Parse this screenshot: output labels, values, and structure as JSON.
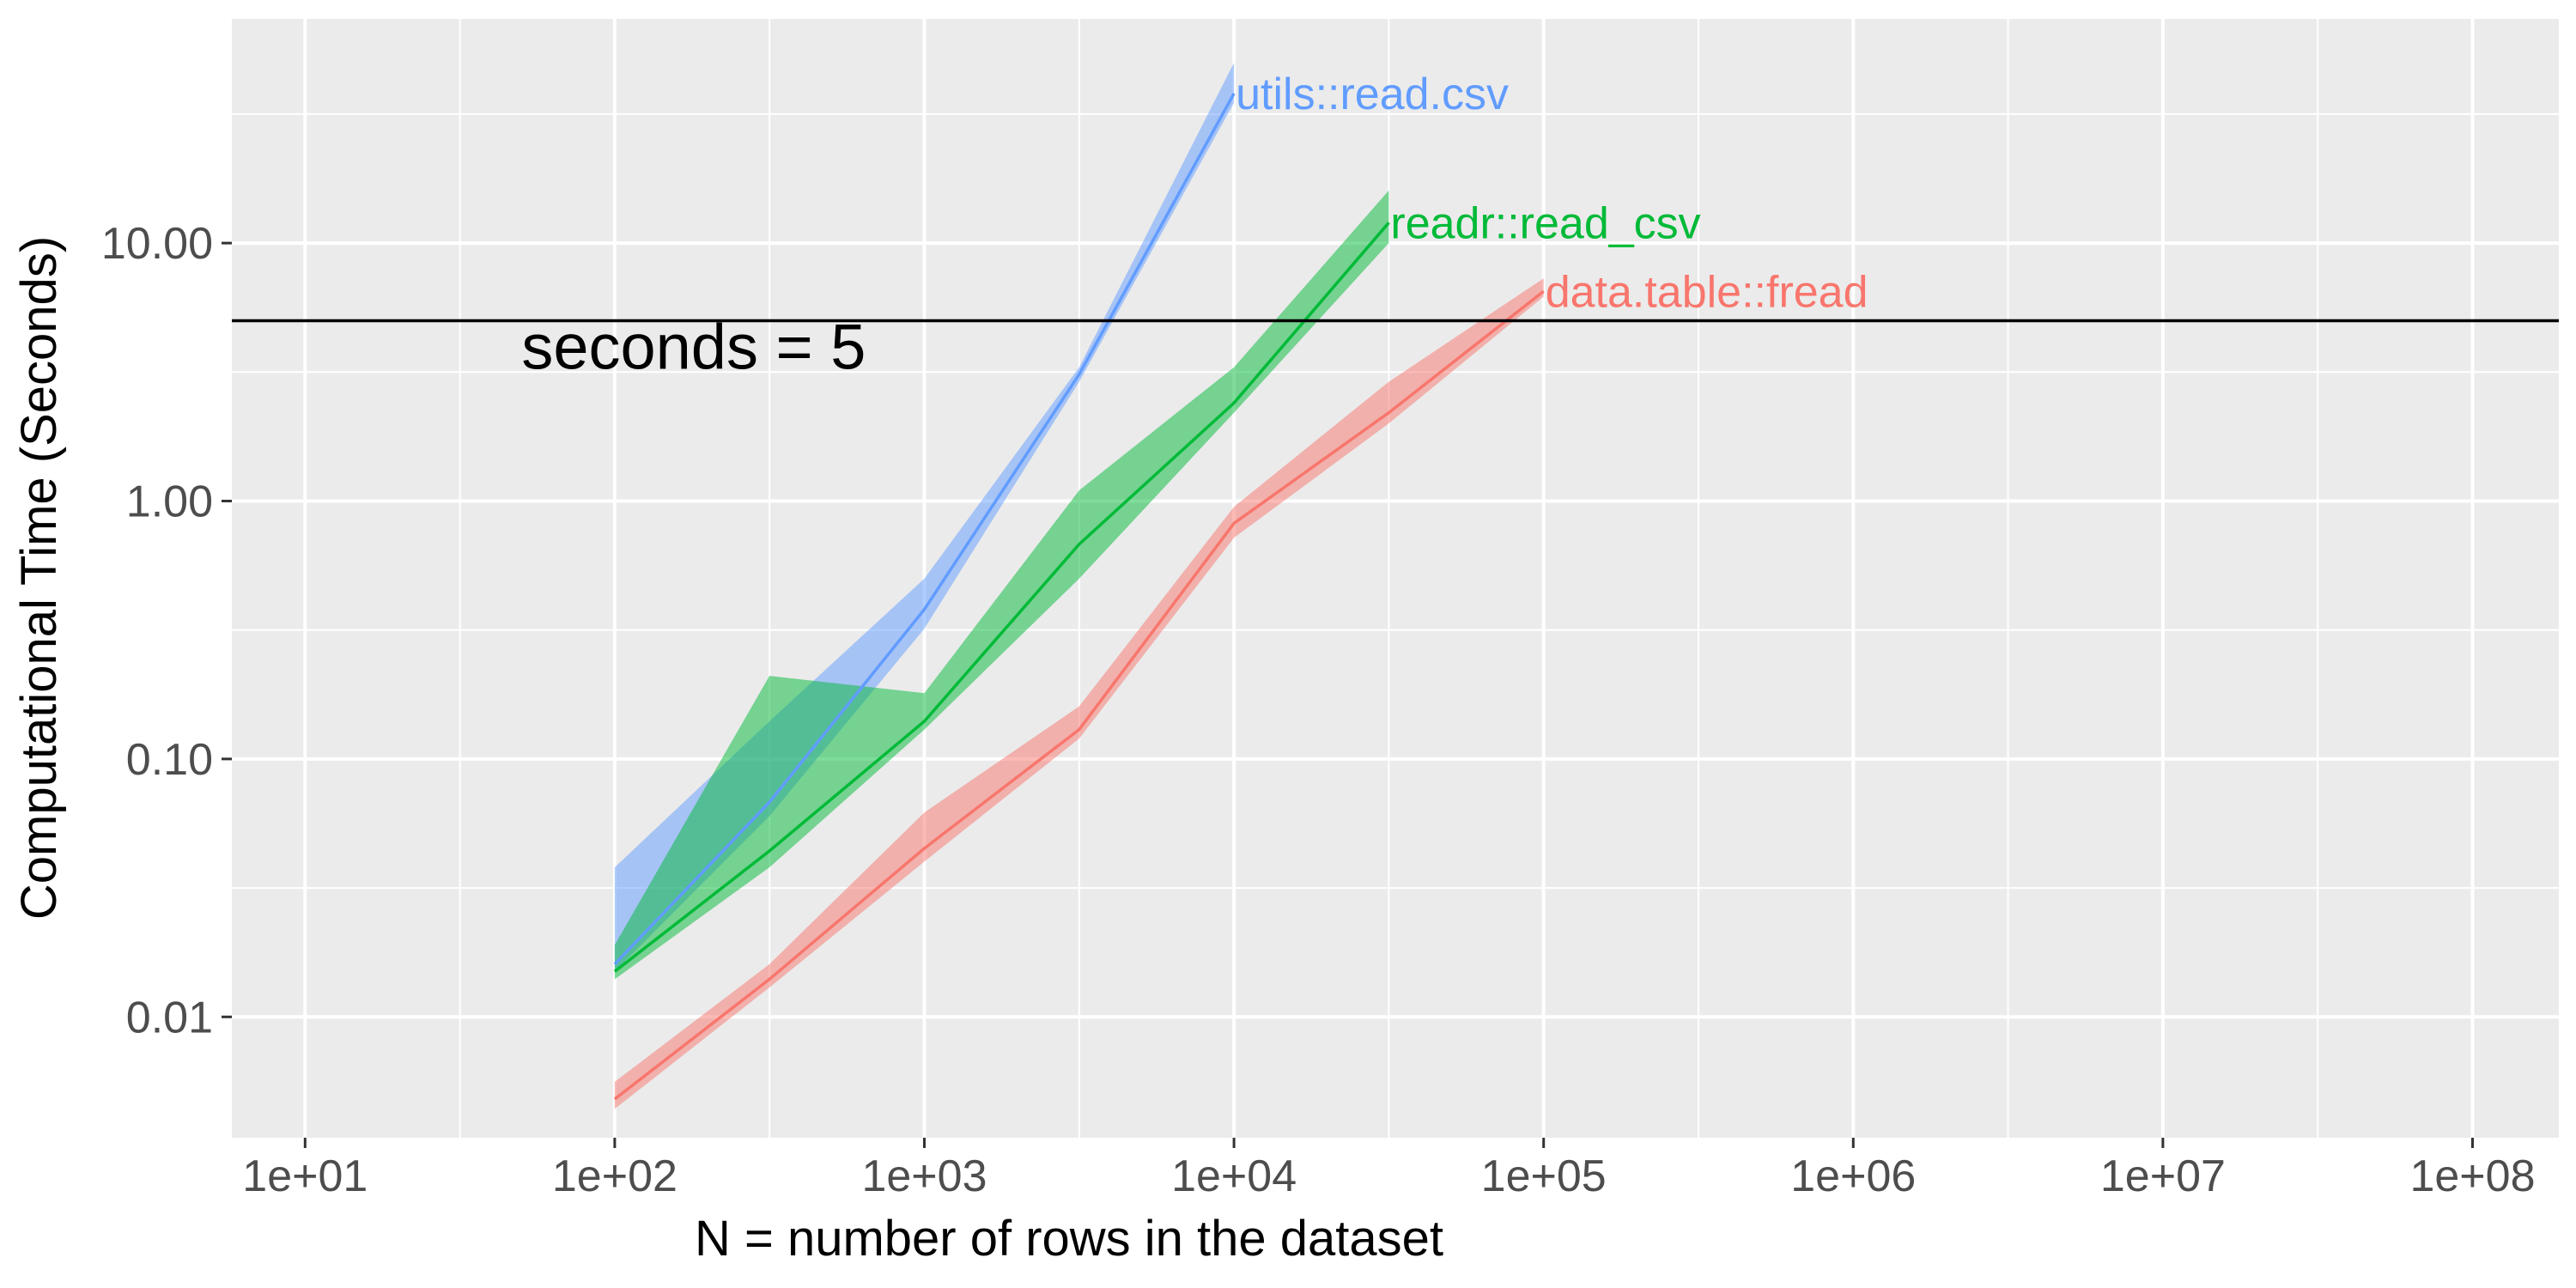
{
  "chart_data": {
    "type": "line",
    "title": "",
    "xlabel": "N = number of rows in the dataset",
    "ylabel": "Computational Time (Seconds)",
    "x_scale": "log10",
    "y_scale": "log10",
    "xlim": [
      5.8,
      190000000
    ],
    "ylim": [
      0.0034,
      74
    ],
    "x_ticks": [
      {
        "value": 10,
        "label": "1e+01"
      },
      {
        "value": 100,
        "label": "1e+02"
      },
      {
        "value": 1000,
        "label": "1e+03"
      },
      {
        "value": 10000,
        "label": "1e+04"
      },
      {
        "value": 100000,
        "label": "1e+05"
      },
      {
        "value": 1000000,
        "label": "1e+06"
      },
      {
        "value": 10000000,
        "label": "1e+07"
      },
      {
        "value": 100000000,
        "label": "1e+08"
      }
    ],
    "y_ticks": [
      {
        "value": 0.01,
        "label": "0.01"
      },
      {
        "value": 0.1,
        "label": "0.10"
      },
      {
        "value": 1,
        "label": "1.00"
      },
      {
        "value": 10,
        "label": "10.00"
      }
    ],
    "grid": true,
    "legend": "none (direct labels at line ends)",
    "reference_line": {
      "y": 5,
      "label": "seconds = 5",
      "color": "#000000"
    },
    "series": [
      {
        "name": "utils::read.csv",
        "color": "#619CFF",
        "x": [
          100,
          316,
          1000,
          3162,
          10000
        ],
        "median": [
          0.016,
          0.068,
          0.38,
          3.1,
          38
        ],
        "min": [
          0.015,
          0.06,
          0.32,
          2.9,
          35
        ],
        "max": [
          0.038,
          0.14,
          0.5,
          3.3,
          50
        ]
      },
      {
        "name": "readr::read_csv",
        "color": "#00BA38",
        "x": [
          100,
          316,
          1000,
          3162,
          10000,
          31623
        ],
        "median": [
          0.015,
          0.044,
          0.14,
          0.68,
          2.4,
          12
        ],
        "min": [
          0.014,
          0.038,
          0.13,
          0.5,
          2.2,
          10
        ],
        "max": [
          0.019,
          0.21,
          0.18,
          1.1,
          3.3,
          16
        ]
      },
      {
        "name": "data.table::fread",
        "color": "#F8766D",
        "x": [
          100,
          316,
          1000,
          3162,
          10000,
          31623,
          100000
        ],
        "median": [
          0.0048,
          0.014,
          0.045,
          0.13,
          0.82,
          2.2,
          6.5
        ],
        "min": [
          0.0044,
          0.013,
          0.04,
          0.12,
          0.72,
          2.0,
          6.2
        ],
        "max": [
          0.0056,
          0.016,
          0.062,
          0.16,
          0.95,
          2.9,
          7.3
        ]
      }
    ]
  }
}
